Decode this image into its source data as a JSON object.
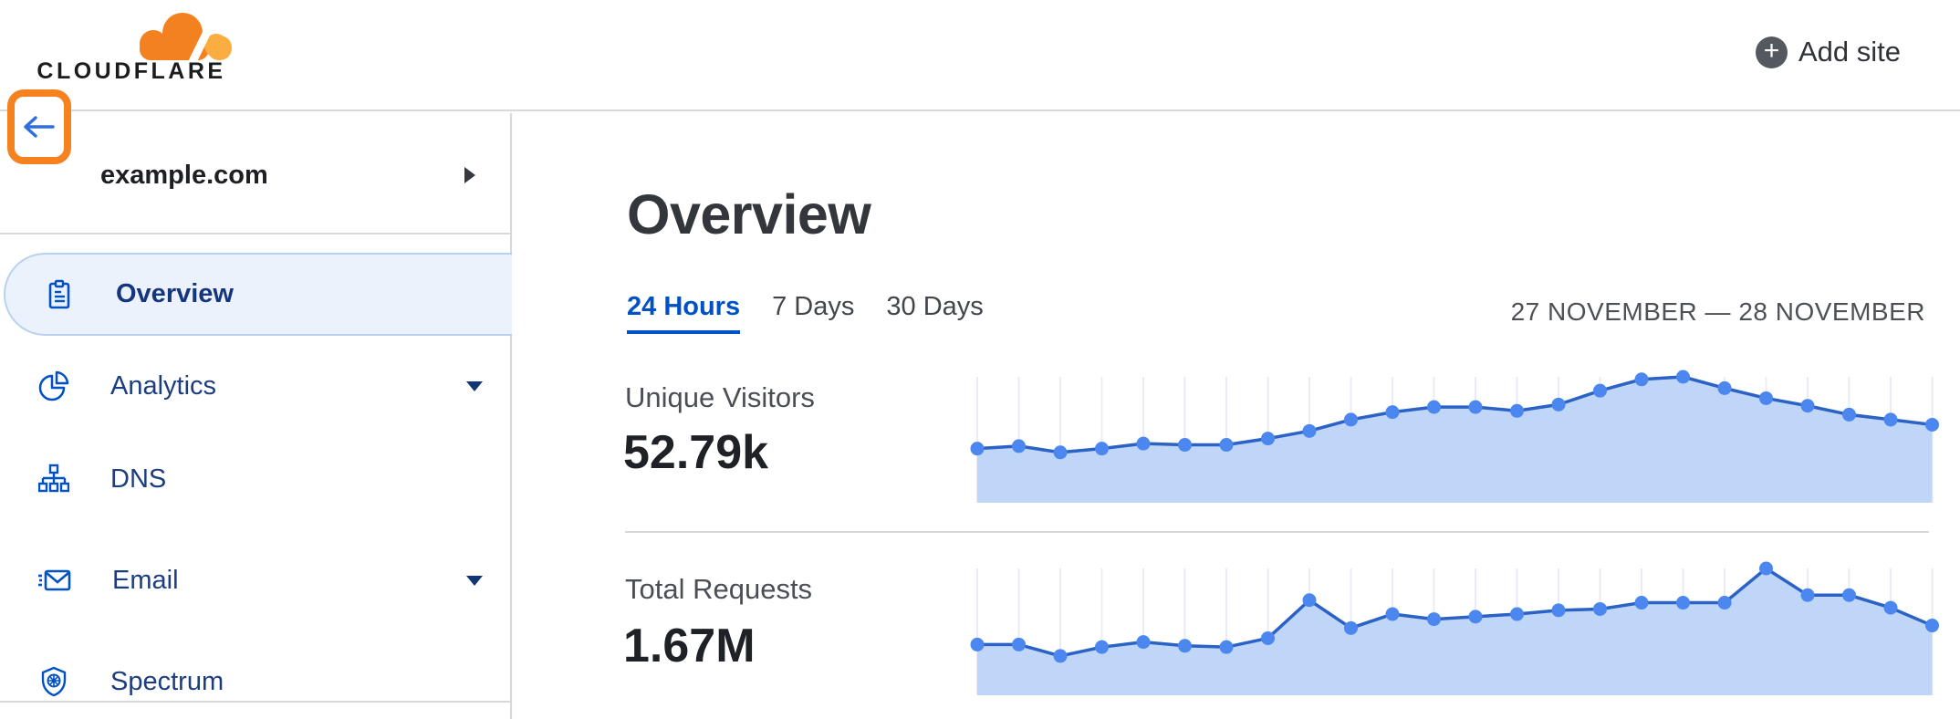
{
  "header": {
    "logo_text": "CLOUDFLARE",
    "add_site_label": "Add site"
  },
  "sidebar": {
    "site_name": "example.com",
    "items": [
      {
        "label": "Overview",
        "icon": "clipboard-icon",
        "selected": true,
        "has_caret": false
      },
      {
        "label": "Analytics",
        "icon": "pie-chart-icon",
        "selected": false,
        "has_caret": true
      },
      {
        "label": "DNS",
        "icon": "dns-tree-icon",
        "selected": false,
        "has_caret": false
      },
      {
        "label": "Email",
        "icon": "email-icon",
        "selected": false,
        "has_caret": true
      },
      {
        "label": "Spectrum",
        "icon": "spectrum-shield-icon",
        "selected": false,
        "has_caret": false
      }
    ]
  },
  "main": {
    "title": "Overview",
    "tabs": [
      {
        "label": "24 Hours",
        "active": true
      },
      {
        "label": "7 Days",
        "active": false
      },
      {
        "label": "30 Days",
        "active": false
      }
    ],
    "date_range": "27 NOVEMBER — 28 NOVEMBER",
    "metrics": [
      {
        "label": "Unique Visitors",
        "value": "52.79k"
      },
      {
        "label": "Total Requests",
        "value": "1.67M"
      }
    ]
  },
  "colors": {
    "brand_orange": "#f48120",
    "brand_orange_light": "#fbad41",
    "annotation_orange": "#f6821f",
    "link_blue": "#0051c3",
    "nav_icon_blue": "#0051c3",
    "nav_text_navy": "#1c3d7f",
    "selected_item_bg": "#ecf2fb",
    "selected_item_border": "#b9d1f0",
    "chart_line": "#2a62c6",
    "chart_dot": "#4b87ee",
    "chart_fill": "#c0d6f8",
    "chart_grid": "#e8ecf4",
    "divider_gray": "#d8d8d8",
    "text_dark": "#1e2125",
    "text_gray": "#4b4f55"
  },
  "chart_data": [
    {
      "type": "area",
      "title": "Unique Visitors",
      "total_displayed": "52.79k",
      "x": [
        0,
        1,
        2,
        3,
        4,
        5,
        6,
        7,
        8,
        9,
        10,
        11,
        12,
        13,
        14,
        15,
        16,
        17,
        18,
        19,
        20,
        21,
        22,
        23
      ],
      "values_normalized": [
        0.43,
        0.45,
        0.4,
        0.43,
        0.47,
        0.46,
        0.46,
        0.51,
        0.57,
        0.66,
        0.72,
        0.76,
        0.76,
        0.73,
        0.78,
        0.89,
        0.98,
        1.0,
        0.91,
        0.83,
        0.77,
        0.7,
        0.66,
        0.62
      ],
      "ylim": [
        0,
        1
      ],
      "grid": "vertical-only",
      "legend": "none",
      "axis_labels_visible": false,
      "note": "24 hourly points over the 24 Hours range; no axis ticks shown on screen, values estimated from plot heights normalized to peak = 1.0"
    },
    {
      "type": "area",
      "title": "Total Requests",
      "total_displayed": "1.67M",
      "x": [
        0,
        1,
        2,
        3,
        4,
        5,
        6,
        7,
        8,
        9,
        10,
        11,
        12,
        13,
        14,
        15,
        16,
        17,
        18,
        19,
        20,
        21,
        22,
        23
      ],
      "values_normalized": [
        0.4,
        0.4,
        0.31,
        0.38,
        0.42,
        0.39,
        0.38,
        0.45,
        0.75,
        0.53,
        0.64,
        0.6,
        0.62,
        0.64,
        0.67,
        0.68,
        0.73,
        0.73,
        0.73,
        1.0,
        0.79,
        0.79,
        0.69,
        0.55
      ],
      "ylim": [
        0,
        1
      ],
      "grid": "vertical-only",
      "legend": "none",
      "axis_labels_visible": false,
      "note": "24 hourly points over the 24 Hours range; no axis ticks shown on screen, values estimated from plot heights normalized to peak = 1.0"
    }
  ]
}
